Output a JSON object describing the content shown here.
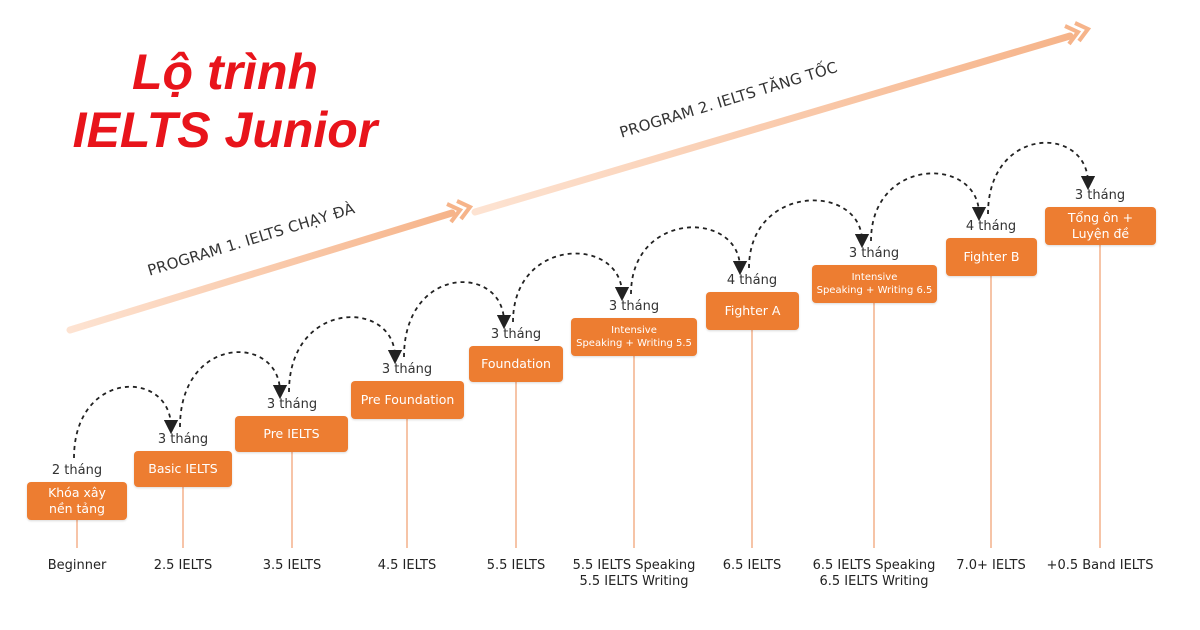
{
  "title": {
    "line1": "Lộ trình",
    "line2": "IELTS Junior"
  },
  "programs": [
    {
      "label": "PROGRAM 1. IELTS CHẠY ĐÀ"
    },
    {
      "label": "PROGRAM 2. IELTS TĂNG TỐC"
    }
  ],
  "colors": {
    "title": "#e8141b",
    "box": "#ed7d31",
    "arrow": "#f7c9a8",
    "connector": "#f4b08a"
  },
  "steps": [
    {
      "duration": "2 tháng",
      "name": "Khóa xây\nnền tảng",
      "level": "Beginner"
    },
    {
      "duration": "3 tháng",
      "name": "Basic IELTS",
      "level": "2.5 IELTS"
    },
    {
      "duration": "3 tháng",
      "name": "Pre IELTS",
      "level": "3.5 IELTS"
    },
    {
      "duration": "3 tháng",
      "name": "Pre Foundation",
      "level": "4.5 IELTS"
    },
    {
      "duration": "3 tháng",
      "name": "Foundation",
      "level": "5.5 IELTS"
    },
    {
      "duration": "3 tháng",
      "name": "Intensive\nSpeaking + Writing 5.5",
      "level": "5.5 IELTS Speaking\n5.5 IELTS Writing"
    },
    {
      "duration": "4 tháng",
      "name": "Fighter A",
      "level": "6.5 IELTS"
    },
    {
      "duration": "3 tháng",
      "name": "Intensive\nSpeaking + Writing 6.5",
      "level": "6.5 IELTS Speaking\n6.5 IELTS Writing"
    },
    {
      "duration": "4 tháng",
      "name": "Fighter B",
      "level": "7.0+ IELTS"
    },
    {
      "duration": "3 tháng",
      "name": "Tổng ôn +\nLuyện đề",
      "level": "+0.5 Band IELTS"
    }
  ]
}
